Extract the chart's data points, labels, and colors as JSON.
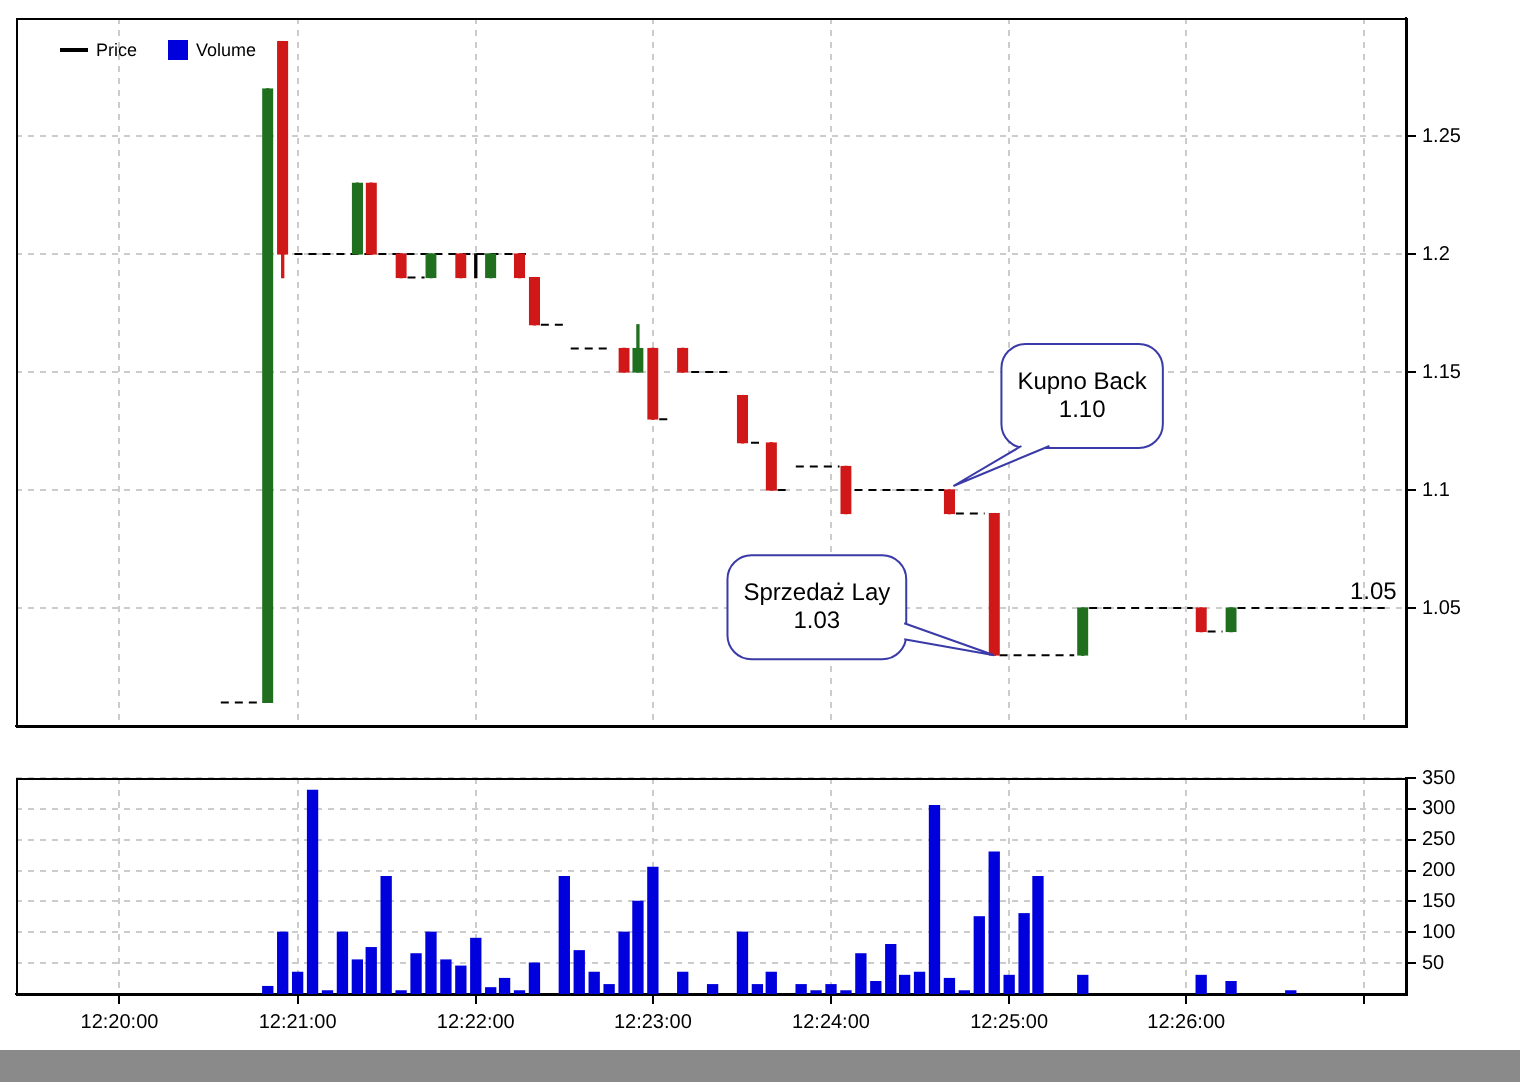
{
  "chart_data": [
    {
      "type": "candlestick",
      "x": [
        12.3472,
        12.3486,
        12.3556,
        12.3569,
        12.3597,
        12.3625,
        12.3653,
        12.3667,
        12.3681,
        12.3708,
        12.3722,
        12.3806,
        12.3819,
        12.3833,
        12.3861,
        12.3917,
        12.3944,
        12.4014,
        12.4111,
        12.4153,
        12.4236,
        12.4347,
        12.4375
      ],
      "ohlc": [
        [
          1.01,
          1.27,
          1.01,
          1.27
        ],
        [
          1.29,
          1.29,
          1.19,
          1.2
        ],
        [
          1.2,
          1.23,
          1.2,
          1.23
        ],
        [
          1.23,
          1.23,
          1.2,
          1.2
        ],
        [
          1.2,
          1.2,
          1.19,
          1.19
        ],
        [
          1.19,
          1.2,
          1.19,
          1.2
        ],
        [
          1.2,
          1.2,
          1.19,
          1.19
        ],
        [
          1.19,
          1.2,
          1.19,
          1.19
        ],
        [
          1.19,
          1.2,
          1.19,
          1.2
        ],
        [
          1.2,
          1.2,
          1.19,
          1.19
        ],
        [
          1.19,
          1.19,
          1.17,
          1.17
        ],
        [
          1.16,
          1.16,
          1.15,
          1.15
        ],
        [
          1.15,
          1.17,
          1.15,
          1.16
        ],
        [
          1.16,
          1.16,
          1.13,
          1.13
        ],
        [
          1.16,
          1.16,
          1.15,
          1.15
        ],
        [
          1.14,
          1.14,
          1.12,
          1.12
        ],
        [
          1.12,
          1.12,
          1.1,
          1.1
        ],
        [
          1.11,
          1.11,
          1.09,
          1.09
        ],
        [
          1.1,
          1.1,
          1.09,
          1.09
        ],
        [
          1.09,
          1.09,
          1.03,
          1.03
        ],
        [
          1.03,
          1.05,
          1.03,
          1.05
        ],
        [
          1.05,
          1.05,
          1.04,
          1.04
        ],
        [
          1.04,
          1.05,
          1.04,
          1.05
        ]
      ],
      "colors": [
        "#1f6f1f",
        "#d01818",
        "#1f6f1f",
        "#d01818",
        "#d01818",
        "#1f6f1f",
        "#d01818",
        "#000000",
        "#1f6f1f",
        "#d01818",
        "#d01818",
        "#d01818",
        "#1f6f1f",
        "#d01818",
        "#d01818",
        "#d01818",
        "#d01818",
        "#d01818",
        "#d01818",
        "#d01818",
        "#1f6f1f",
        "#d01818",
        "#1f6f1f"
      ],
      "series": [
        {
          "name": "Price",
          "type": "line",
          "color": "#000000",
          "line_style": "dashed",
          "x": [
            12.3428,
            12.3467,
            null,
            12.3497,
            12.3714,
            null,
            12.3603,
            12.3619,
            null,
            12.3728,
            12.3753,
            null,
            12.3756,
            12.3794,
            null,
            12.3839,
            12.385,
            null,
            12.3869,
            12.3908,
            null,
            12.3925,
            12.3936,
            null,
            12.395,
            12.3961,
            null,
            12.3967,
            12.4008,
            null,
            12.4022,
            12.4106,
            null,
            12.4117,
            12.4144,
            null,
            12.4158,
            12.4228,
            null,
            12.4242,
            12.4339,
            null,
            12.4353,
            12.4367,
            null,
            12.4381,
            12.4519
          ],
          "values": [
            1.01,
            1.01,
            null,
            1.2,
            1.2,
            null,
            1.19,
            1.19,
            null,
            1.17,
            1.17,
            null,
            1.16,
            1.16,
            null,
            1.13,
            1.13,
            null,
            1.15,
            1.15,
            null,
            1.12,
            1.12,
            null,
            1.1,
            1.1,
            null,
            1.11,
            1.11,
            null,
            1.1,
            1.1,
            null,
            1.09,
            1.09,
            null,
            1.03,
            1.03,
            null,
            1.05,
            1.05,
            null,
            1.04,
            1.04,
            null,
            1.05,
            1.05
          ]
        }
      ],
      "xlim": [
        12.3236,
        12.4539
      ],
      "xticks": [
        12.3333,
        12.35,
        12.3667,
        12.3833,
        12.4,
        12.4167,
        12.4333,
        12.45
      ],
      "ylim": [
        1.0,
        1.3
      ],
      "yticks": [
        1.05,
        1.1,
        1.15,
        1.2,
        1.25
      ],
      "tick_labels": "y",
      "grid": true,
      "legend": "top left",
      "marker": "none",
      "annotations": [
        {
          "text": "Kupno Back\n1.10",
          "x": 12.4111,
          "y": 1.1
        },
        {
          "text": "Sprzedaż Lay\n1.03",
          "x": 12.4153,
          "y": 1.03
        },
        {
          "text": "1.05",
          "x": 12.4519,
          "y": 1.05
        }
      ]
    },
    {
      "type": "bar",
      "legend": "top left",
      "grid": true,
      "series": [
        {
          "name": "Volume",
          "color": "#0000dd",
          "x": [
            12.3472,
            12.3486,
            12.35,
            12.3514,
            12.3528,
            12.3542,
            12.3556,
            12.3569,
            12.3583,
            12.3597,
            12.3611,
            12.3625,
            12.3639,
            12.3653,
            12.3667,
            12.3681,
            12.3694,
            12.3708,
            12.3722,
            12.375,
            12.3764,
            12.3778,
            12.3792,
            12.3806,
            12.3819,
            12.3833,
            12.3861,
            12.3889,
            12.3917,
            12.3931,
            12.3944,
            12.3972,
            12.3986,
            12.4,
            12.4014,
            12.4028,
            12.4042,
            12.4056,
            12.4069,
            12.4083,
            12.4097,
            12.4111,
            12.4125,
            12.4139,
            12.4153,
            12.4167,
            12.4181,
            12.4194,
            12.4236,
            12.4347,
            12.4375,
            12.4431
          ],
          "values": [
            12,
            100,
            35,
            330,
            5,
            100,
            55,
            75,
            190,
            5,
            65,
            100,
            55,
            45,
            90,
            10,
            25,
            5,
            50,
            190,
            70,
            35,
            15,
            100,
            150,
            205,
            35,
            15,
            100,
            15,
            35,
            15,
            5,
            15,
            5,
            65,
            20,
            80,
            30,
            35,
            305,
            25,
            5,
            125,
            230,
            30,
            130,
            190,
            30,
            30,
            20,
            5
          ]
        }
      ],
      "xlim": [
        12.3236,
        12.4539
      ],
      "xticks": [
        {
          "value": 12.3333,
          "label": "12:20:00"
        },
        {
          "value": 12.35,
          "label": "12:21:00"
        },
        {
          "value": 12.3667,
          "label": "12:22:00"
        },
        {
          "value": 12.3833,
          "label": "12:23:00"
        },
        {
          "value": 12.4,
          "label": "12:24:00"
        },
        {
          "value": 12.4167,
          "label": "12:25:00"
        },
        {
          "value": 12.4333,
          "label": "12:26:00"
        },
        {
          "value": 12.45,
          "label": null
        }
      ],
      "ylim": [
        0,
        350
      ],
      "yticks": [
        50,
        100,
        150,
        200,
        250,
        300,
        350
      ]
    }
  ]
}
